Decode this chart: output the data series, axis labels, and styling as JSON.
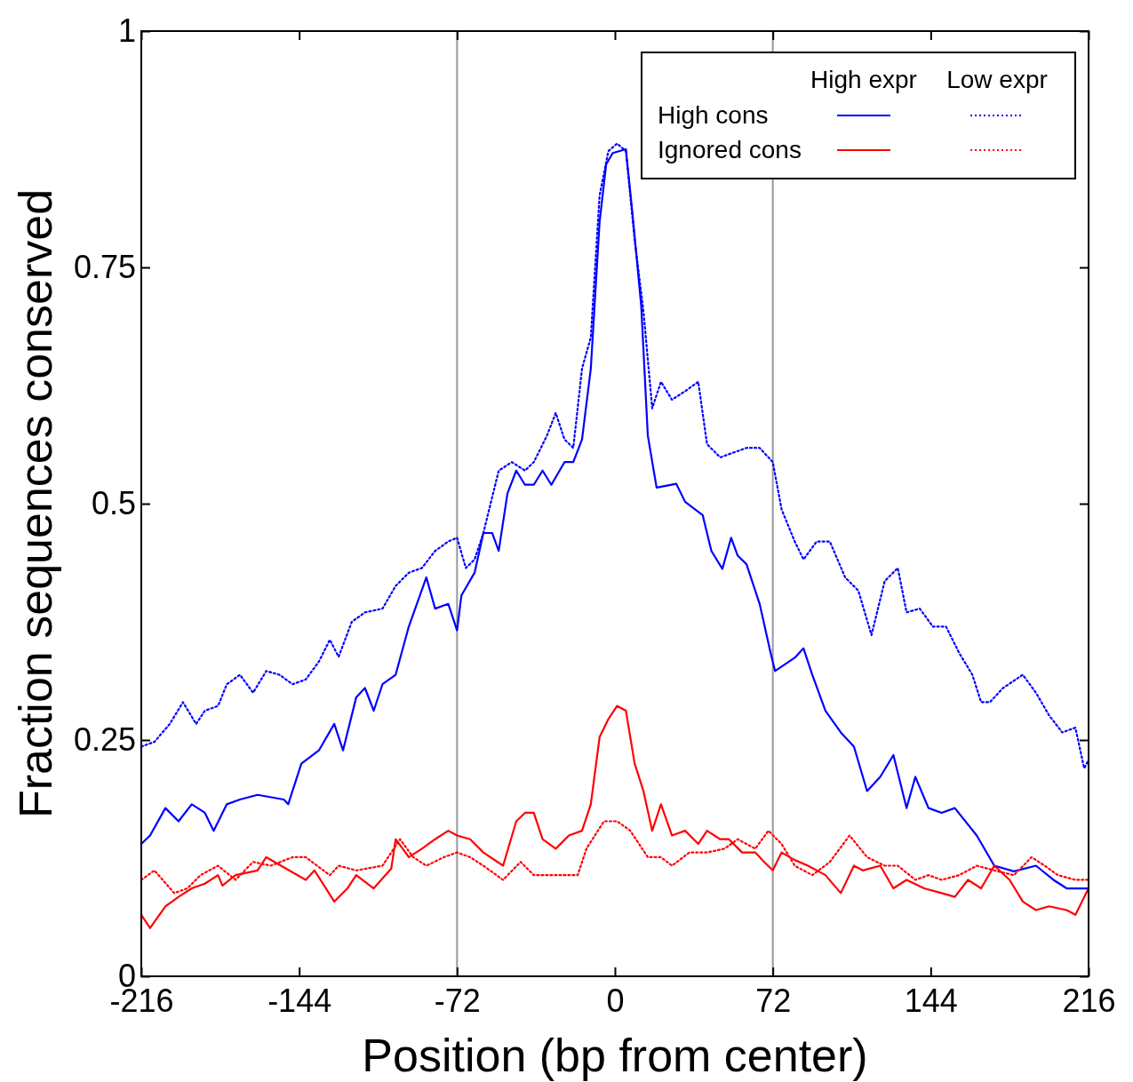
{
  "chart_data": {
    "type": "line",
    "xlabel": "Position (bp from center)",
    "ylabel": "Fraction sequences conserved",
    "xlim": [
      -216,
      216
    ],
    "ylim": [
      0,
      1
    ],
    "xticks": [
      -216,
      -144,
      -72,
      0,
      72,
      144,
      216
    ],
    "yticks": [
      0,
      {
        "value": 0.25,
        "label": "0.25"
      },
      {
        "value": 0.5,
        "label": "0.5"
      },
      {
        "value": 0.75,
        "label": "0.75"
      },
      1
    ],
    "grid": false,
    "annotations": [
      "High expr",
      "Low expr",
      "High cons",
      "Ignored cons"
    ],
    "ref_lines": [
      {
        "axis": "x",
        "value": -72,
        "color": "#999999"
      },
      {
        "axis": "x",
        "value": 72,
        "color": "#999999"
      }
    ],
    "series": [
      {
        "color": "#0000ff",
        "line_style": "solid",
        "x": [
          -216,
          -212,
          -205,
          -199,
          -193,
          -187,
          -183,
          -177,
          -171,
          -163,
          -151,
          -149,
          -143,
          -135,
          -128,
          -124,
          -118,
          -114,
          -110,
          -106,
          -100,
          -94,
          -86,
          -82,
          -76,
          -72,
          -70,
          -64,
          -60,
          -56,
          -53,
          -49,
          -45,
          -41,
          -37,
          -33,
          -29,
          -23,
          -19,
          -15,
          -11,
          -7,
          -4,
          -1,
          5,
          8,
          12,
          15,
          19,
          28,
          32,
          40,
          44,
          49,
          53,
          56,
          60,
          66,
          71,
          73,
          82,
          86,
          90,
          96,
          103,
          109,
          115,
          121,
          127,
          133,
          137,
          143,
          149,
          155,
          165,
          173,
          182,
          192,
          200,
          206,
          214,
          216
        ],
        "values": [
          0.14,
          0.149,
          0.178,
          0.164,
          0.182,
          0.173,
          0.154,
          0.182,
          0.187,
          0.192,
          0.187,
          0.182,
          0.225,
          0.239,
          0.267,
          0.239,
          0.295,
          0.305,
          0.281,
          0.309,
          0.319,
          0.37,
          0.422,
          0.389,
          0.394,
          0.366,
          0.403,
          0.427,
          0.469,
          0.469,
          0.45,
          0.511,
          0.535,
          0.52,
          0.52,
          0.535,
          0.52,
          0.544,
          0.544,
          0.568,
          0.643,
          0.798,
          0.859,
          0.871,
          0.875,
          0.807,
          0.709,
          0.572,
          0.517,
          0.521,
          0.502,
          0.488,
          0.45,
          0.431,
          0.464,
          0.445,
          0.436,
          0.394,
          0.342,
          0.323,
          0.337,
          0.347,
          0.319,
          0.281,
          0.258,
          0.243,
          0.196,
          0.211,
          0.234,
          0.178,
          0.211,
          0.178,
          0.173,
          0.178,
          0.149,
          0.117,
          0.111,
          0.117,
          0.102,
          0.093,
          0.093,
          0.093
        ]
      },
      {
        "color": "#0000ff",
        "line_style": "dotted",
        "x": [
          -216,
          -210,
          -203,
          -197,
          -191,
          -187,
          -181,
          -177,
          -171,
          -165,
          -159,
          -153,
          -147,
          -141,
          -135,
          -130,
          -126,
          -120,
          -114,
          -106,
          -100,
          -94,
          -88,
          -82,
          -76,
          -72,
          -68,
          -64,
          -60,
          -53,
          -47,
          -41,
          -37,
          -31,
          -27,
          -23,
          -19,
          -15,
          -11,
          -7,
          -3,
          1,
          5,
          9,
          13,
          17,
          21,
          26,
          32,
          38,
          42,
          48,
          54,
          60,
          66,
          72,
          76,
          82,
          86,
          92,
          98,
          105,
          111,
          117,
          123,
          129,
          133,
          139,
          145,
          151,
          157,
          163,
          167,
          171,
          177,
          186,
          192,
          198,
          204,
          210,
          214,
          216
        ],
        "values": [
          0.243,
          0.248,
          0.267,
          0.29,
          0.267,
          0.281,
          0.286,
          0.309,
          0.319,
          0.3,
          0.323,
          0.319,
          0.309,
          0.314,
          0.333,
          0.356,
          0.338,
          0.375,
          0.385,
          0.389,
          0.413,
          0.427,
          0.432,
          0.45,
          0.46,
          0.464,
          0.432,
          0.441,
          0.469,
          0.535,
          0.544,
          0.535,
          0.544,
          0.572,
          0.596,
          0.568,
          0.559,
          0.643,
          0.676,
          0.826,
          0.873,
          0.881,
          0.873,
          0.779,
          0.704,
          0.601,
          0.629,
          0.61,
          0.619,
          0.629,
          0.563,
          0.549,
          0.554,
          0.559,
          0.559,
          0.544,
          0.494,
          0.46,
          0.441,
          0.46,
          0.46,
          0.422,
          0.408,
          0.361,
          0.418,
          0.432,
          0.385,
          0.389,
          0.37,
          0.37,
          0.342,
          0.319,
          0.29,
          0.29,
          0.305,
          0.319,
          0.3,
          0.276,
          0.258,
          0.263,
          0.22,
          0.229
        ]
      },
      {
        "color": "#ff0000",
        "line_style": "solid",
        "x": [
          -216,
          -212,
          -205,
          -199,
          -193,
          -187,
          -181,
          -179,
          -173,
          -163,
          -159,
          -147,
          -141,
          -137,
          -128,
          -122,
          -118,
          -110,
          -102,
          -100,
          -94,
          -88,
          -82,
          -76,
          -72,
          -66,
          -60,
          -51,
          -45,
          -41,
          -37,
          -33,
          -27,
          -21,
          -15,
          -11,
          -7,
          -3,
          1,
          5,
          9,
          13,
          17,
          21,
          26,
          32,
          38,
          42,
          48,
          52,
          58,
          64,
          68,
          72,
          76,
          82,
          88,
          96,
          103,
          109,
          113,
          121,
          127,
          133,
          141,
          149,
          155,
          161,
          167,
          173,
          180,
          186,
          192,
          198,
          206,
          210,
          216
        ],
        "values": [
          0.065,
          0.051,
          0.074,
          0.084,
          0.093,
          0.098,
          0.107,
          0.096,
          0.107,
          0.112,
          0.126,
          0.11,
          0.102,
          0.112,
          0.079,
          0.093,
          0.107,
          0.093,
          0.114,
          0.145,
          0.126,
          0.135,
          0.145,
          0.154,
          0.149,
          0.145,
          0.131,
          0.117,
          0.164,
          0.173,
          0.173,
          0.145,
          0.135,
          0.149,
          0.154,
          0.182,
          0.253,
          0.272,
          0.286,
          0.281,
          0.225,
          0.196,
          0.154,
          0.182,
          0.149,
          0.154,
          0.14,
          0.154,
          0.145,
          0.145,
          0.131,
          0.131,
          0.121,
          0.112,
          0.131,
          0.123,
          0.117,
          0.107,
          0.088,
          0.117,
          0.112,
          0.117,
          0.093,
          0.102,
          0.093,
          0.088,
          0.084,
          0.102,
          0.093,
          0.117,
          0.102,
          0.079,
          0.07,
          0.074,
          0.07,
          0.065,
          0.093
        ]
      },
      {
        "color": "#ff0000",
        "line_style": "dotted",
        "x": [
          -216,
          -210,
          -201,
          -195,
          -189,
          -181,
          -173,
          -165,
          -157,
          -147,
          -141,
          -130,
          -126,
          -118,
          -106,
          -98,
          -92,
          -86,
          -78,
          -72,
          -66,
          -60,
          -51,
          -43,
          -37,
          -29,
          -17,
          -13,
          -5,
          1,
          7,
          15,
          21,
          26,
          34,
          42,
          50,
          56,
          64,
          70,
          76,
          82,
          90,
          98,
          107,
          115,
          123,
          129,
          137,
          143,
          149,
          157,
          165,
          173,
          182,
          190,
          196,
          202,
          210,
          216
        ],
        "values": [
          0.102,
          0.112,
          0.088,
          0.093,
          0.107,
          0.117,
          0.102,
          0.121,
          0.117,
          0.126,
          0.126,
          0.107,
          0.117,
          0.112,
          0.117,
          0.145,
          0.126,
          0.117,
          0.126,
          0.131,
          0.126,
          0.117,
          0.102,
          0.121,
          0.107,
          0.107,
          0.107,
          0.135,
          0.164,
          0.164,
          0.154,
          0.126,
          0.126,
          0.117,
          0.131,
          0.131,
          0.135,
          0.145,
          0.135,
          0.154,
          0.14,
          0.117,
          0.107,
          0.121,
          0.149,
          0.126,
          0.117,
          0.117,
          0.102,
          0.107,
          0.102,
          0.107,
          0.117,
          0.112,
          0.107,
          0.126,
          0.117,
          0.107,
          0.102,
          0.102
        ]
      }
    ]
  }
}
